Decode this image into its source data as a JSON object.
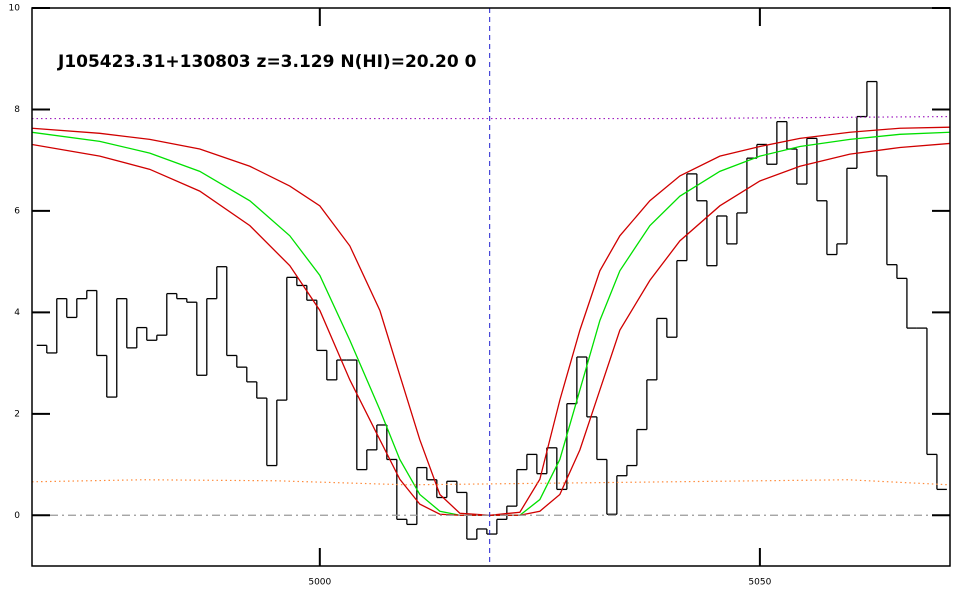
{
  "chart_data": {
    "type": "line",
    "title": "J105423.31+130803 z=3.129 N(HI)=20.20 0",
    "xlim": [
      4967.3,
      5071.6
    ],
    "ylim": [
      -1,
      10
    ],
    "xticks": [
      5000,
      5050
    ],
    "yticks": [
      0,
      2,
      4,
      6,
      8,
      10
    ],
    "vline": 5019.3,
    "series": [
      {
        "style": "steps",
        "color": "#000000",
        "x": [
          4968.41,
          4969.55,
          4970.68,
          4971.82,
          4972.96,
          4974.09,
          4975.23,
          4976.36,
          4977.5,
          4978.64,
          4979.77,
          4980.91,
          4982.05,
          4983.18,
          4984.32,
          4985.46,
          4986.59,
          4987.73,
          4988.86,
          4990.0,
          4991.14,
          4992.27,
          4993.41,
          4994.55,
          4995.68,
          4996.82,
          4997.96,
          4999.09,
          5000.23,
          5001.36,
          5002.5,
          5003.64,
          5004.77,
          5005.91,
          5007.05,
          5008.18,
          5009.32,
          5010.46,
          5011.59,
          5012.73,
          5013.86,
          5015.0,
          5016.14,
          5017.27,
          5018.41,
          5019.55,
          5020.68,
          5021.82,
          5022.96,
          5024.09,
          5025.23,
          5026.36,
          5027.5,
          5028.64,
          5029.77,
          5030.91,
          5032.05,
          5033.18,
          5034.32,
          5035.46,
          5036.59,
          5037.73,
          5038.86,
          5040.0,
          5041.14,
          5042.27,
          5043.41,
          5044.55,
          5045.68,
          5046.82,
          5047.96,
          5049.09,
          5050.23,
          5051.36,
          5052.5,
          5053.64,
          5054.77,
          5055.91,
          5057.05,
          5058.18,
          5059.32,
          5060.46,
          5061.59,
          5062.73,
          5063.86,
          5065.0,
          5066.14,
          5067.27,
          5068.41,
          5069.55,
          5070.68
        ],
        "values": [
          3.35,
          3.2,
          4.27,
          3.9,
          4.27,
          4.43,
          3.15,
          2.33,
          4.27,
          3.3,
          3.7,
          3.45,
          3.55,
          4.37,
          4.27,
          4.2,
          2.76,
          4.27,
          4.9,
          3.15,
          2.92,
          2.63,
          2.31,
          0.98,
          2.27,
          4.69,
          4.53,
          4.24,
          3.25,
          2.67,
          3.06,
          3.06,
          0.9,
          1.29,
          1.78,
          1.1,
          -0.08,
          -0.18,
          0.94,
          0.7,
          0.35,
          0.67,
          0.45,
          -0.47,
          -0.27,
          -0.37,
          -0.08,
          0.18,
          0.9,
          1.2,
          0.82,
          1.33,
          0.51,
          2.2,
          3.12,
          1.94,
          1.1,
          0.02,
          0.78,
          0.98,
          1.69,
          2.67,
          3.88,
          3.51,
          5.02,
          6.73,
          6.2,
          4.92,
          5.9,
          5.35,
          5.96,
          7.04,
          7.31,
          6.92,
          7.76,
          7.22,
          6.53,
          7.43,
          6.2,
          5.14,
          5.35,
          6.84,
          7.86,
          8.55,
          6.69,
          4.94,
          4.67,
          3.69,
          3.69,
          1.2,
          0.51
        ]
      },
      {
        "style": "solid",
        "color": "#00e000",
        "x": [
          4967.3,
          4975,
          4980.68,
          4986.36,
          4992.05,
          4996.59,
          5000,
          5003.41,
          5006.82,
          5009.09,
          5011.36,
          5013.64,
          5015.91,
          5019.32,
          5022.73,
          5025,
          5027.27,
          5029.55,
          5031.82,
          5034.09,
          5037.5,
          5040.91,
          5045.45,
          5050,
          5054.55,
          5060.23,
          5065.91,
          5071.6
        ],
        "values": [
          7.55,
          7.37,
          7.14,
          6.78,
          6.2,
          5.51,
          4.73,
          3.45,
          2.08,
          1.1,
          0.41,
          0.08,
          0,
          0,
          0,
          0.31,
          1.1,
          2.47,
          3.84,
          4.82,
          5.71,
          6.29,
          6.78,
          7.08,
          7.27,
          7.41,
          7.51,
          7.55
        ]
      },
      {
        "style": "solid",
        "color": "#d00000",
        "x": [
          4967.3,
          4975,
          4980.68,
          4986.36,
          4992.05,
          4996.59,
          5000,
          5003.41,
          5006.82,
          5009.09,
          5011.36,
          5013.64,
          5015.91,
          5019.32,
          5022.73,
          5025,
          5027.27,
          5029.55,
          5031.82,
          5034.09,
          5037.5,
          5040.91,
          5045.45,
          5050,
          5054.55,
          5060.23,
          5065.91,
          5071.6
        ],
        "values": [
          7.63,
          7.53,
          7.41,
          7.22,
          6.88,
          6.49,
          6.1,
          5.31,
          4.04,
          2.76,
          1.49,
          0.41,
          0.04,
          0,
          0.06,
          0.71,
          2.27,
          3.65,
          4.82,
          5.51,
          6.2,
          6.69,
          7.08,
          7.27,
          7.43,
          7.55,
          7.63,
          7.65
        ]
      },
      {
        "style": "solid",
        "color": "#d00000",
        "x": [
          4967.3,
          4975,
          4980.68,
          4986.36,
          4992.05,
          4996.59,
          5000,
          5003.41,
          5006.82,
          5009.09,
          5011.36,
          5013.64,
          5015.91,
          5019.32,
          5022.73,
          5025,
          5027.27,
          5029.55,
          5031.82,
          5034.09,
          5037.5,
          5040.91,
          5045.45,
          5050,
          5054.55,
          5060.23,
          5065.91,
          5071.6
        ],
        "values": [
          7.31,
          7.08,
          6.82,
          6.39,
          5.71,
          4.92,
          4.04,
          2.67,
          1.49,
          0.71,
          0.22,
          0.02,
          0,
          0,
          0,
          0.08,
          0.41,
          1.29,
          2.47,
          3.65,
          4.63,
          5.41,
          6.1,
          6.59,
          6.88,
          7.12,
          7.25,
          7.33
        ]
      },
      {
        "style": "dotted",
        "color": "#a020c0",
        "x": [
          4967.3,
          5040,
          5071.6
        ],
        "values": [
          7.82,
          7.82,
          7.86
        ]
      },
      {
        "style": "dotted",
        "color": "#ff8c3c",
        "x": [
          4967.3,
          4980,
          4995,
          5010,
          5030,
          5050,
          5060,
          5071.6
        ],
        "values": [
          0.66,
          0.7,
          0.68,
          0.6,
          0.64,
          0.68,
          0.7,
          0.6
        ]
      },
      {
        "style": "dashdot",
        "color": "#999999",
        "x": [
          4967.3,
          5071.6
        ],
        "values": [
          0,
          0
        ]
      }
    ]
  }
}
